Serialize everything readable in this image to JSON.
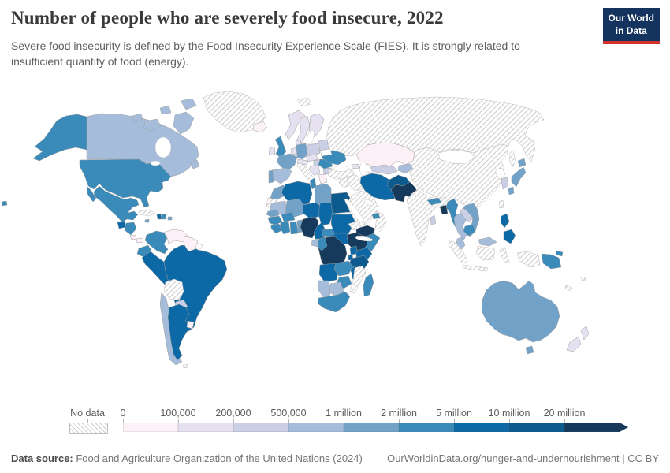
{
  "header": {
    "title": "Number of people who are severely food insecure, 2022",
    "subtitle": "Severe food insecurity is defined by the Food Insecurity Experience Scale (FIES). It is strongly related to insufficient quantity of food (energy).",
    "logo": {
      "line1": "Our World",
      "line2": "in Data",
      "bg_color": "#15335f",
      "accent_color": "#d0342c"
    }
  },
  "chart_data": {
    "type": "heatmap",
    "subtype": "choropleth-world-map",
    "title": "Number of people who are severely food insecure",
    "year": "2022",
    "unit": "people severely food insecure",
    "legend": {
      "no_data_label": "No data",
      "tick_labels": [
        "0",
        "100,000",
        "200,000",
        "500,000",
        "1 million",
        "2 million",
        "5 million",
        "10 million",
        "20 million"
      ],
      "bin_keys": [
        "0-100k",
        "100k-200k",
        "200k-500k",
        "500k-1M",
        "1M-2M",
        "2M-5M",
        "5M-10M",
        "10M-20M",
        "20M+"
      ],
      "bin_colors": [
        "#fdf1f7",
        "#e5e1f0",
        "#cbcfe5",
        "#a5bddb",
        "#73a2c9",
        "#3b8bba",
        "#0c69a6",
        "#0d5a8f",
        "#163a5b"
      ],
      "no_data_pattern": "diagonal-hatch",
      "position": "bottom"
    },
    "countries": {
      "Canada": "500k-1M",
      "United States": "2M-5M",
      "Hawaii": "2M-5M",
      "Alaska": "2M-5M",
      "Greenland": "no-data",
      "Mexico": "2M-5M",
      "Guatemala": "5M-10M",
      "Honduras & Nicaragua": "2M-5M",
      "Costa Rica": "0-100k",
      "Panama": "0-100k",
      "Cuba": "no-data",
      "Haiti": "5M-10M",
      "Dominican Republic": "2M-5M",
      "Jamaica": "1M-2M",
      "Puerto Rico": "1M-2M",
      "Colombia": "2M-5M",
      "Venezuela": "0-100k",
      "Guyana & Suriname": "0-100k",
      "French Guiana": "none",
      "Ecuador": "2M-5M",
      "Peru": "5M-10M",
      "Brazil": "5M-10M",
      "Bolivia": "no-data",
      "Paraguay": "200k-500k",
      "Chile": "500k-1M",
      "Argentina": "5M-10M",
      "Uruguay": "0-100k",
      "Falkland Islands": "no-data",
      "Iceland": "0-100k",
      "Svalbard": "no-data",
      "Norway": "100k-200k",
      "Sweden": "100k-200k",
      "Finland": "100k-200k",
      "Denmark": "100k-200k",
      "United Kingdom": "2M-5M",
      "Ireland": "100k-200k",
      "France": "1M-2M",
      "Belgium & Netherlands": "100k-200k",
      "Germany": "1M-2M",
      "Poland": "200k-500k",
      "Czechia & Slovakia": "100k-200k",
      "Austria & Switzerland": "100k-200k",
      "Hungary": "200k-500k",
      "Balkans": "100k-200k",
      "Romania": "2M-5M",
      "Bulgaria": "200k-500k",
      "Greece": "0-100k",
      "Italy": "no-data",
      "Ukraine": "2M-5M",
      "Belarus": "none",
      "Baltic states": "200k-500k",
      "Spain": "500k-1M",
      "Portugal": "1M-2M",
      "Georgia": "100k-200k",
      "Azerbaijan": "200k-500k",
      "Russia": "no-data",
      "Sakhalin": "no-data",
      "Kazakhstan": "0-100k",
      "Uzbekistan": "200k-500k",
      "Turkmenistan": "no-data",
      "Kyrgyzstan & Tajikistan": "500k-1M",
      "Turkey": "no-data",
      "Syria & Jordan": "no-data",
      "Iraq": "no-data",
      "Saudi Arabia": "no-data",
      "Yemen": "20M+",
      "Oman": "no-data",
      "United Arab Emirates": "2M-5M",
      "Iran": "5M-10M",
      "Afghanistan": "10M-20M",
      "Pakistan": "20M+",
      "India": "no-data",
      "Nepal": "2M-5M",
      "Bangladesh": "20M+",
      "Sri Lanka": "200k-500k",
      "Myanmar": "2M-5M",
      "Thailand": "500k-1M",
      "Laos": "200k-500k",
      "Vietnam": "1M-2M",
      "Cambodia": "2M-5M",
      "Malaysia": "500k-1M",
      "Indonesia": "no-data",
      "Philippines": "5M-10M",
      "China": "no-data",
      "Mongolia": "none",
      "Taiwan": "no-data",
      "Japan": "1M-2M",
      "South Korea": "200k-500k",
      "North Korea": "none",
      "Morocco": "1M-2M",
      "Western Sahara": "no-data",
      "Algeria": "5M-10M",
      "Tunisia": "2M-5M",
      "Libya": "1M-2M",
      "Egypt": "10M-20M",
      "Mauritania": "500k-1M",
      "Mali": "1M-2M",
      "Senegal": "1M-2M",
      "Guinea": "2M-5M",
      "Sierra Leone & Liberia": "2M-5M",
      "Ivory Coast": "2M-5M",
      "Ghana": "2M-5M",
      "Burkina Faso": "2M-5M",
      "Benin & Togo": "1M-2M",
      "Niger": "5M-10M",
      "Chad": "5M-10M",
      "Nigeria": "20M+",
      "Cameroon": "5M-10M",
      "Central African Republic": "2M-5M",
      "Sudan": "5M-10M",
      "Eritrea": "no-data",
      "Ethiopia": "20M+",
      "Somalia": "2M-5M",
      "South Sudan": "5M-10M",
      "Uganda": "5M-10M",
      "Kenya": "5M-10M",
      "Rwanda & Burundi": "5M-10M",
      "Tanzania": "10M-20M",
      "Gabon": "500k-1M",
      "Congo": "2M-5M",
      "DR Congo": "20M+",
      "Angola": "5M-10M",
      "Zambia": "2M-5M",
      "Malawi": "5M-10M",
      "Mozambique": "no-data",
      "Zimbabwe": "2M-5M",
      "Botswana": "500k-1M",
      "Namibia": "500k-1M",
      "South Africa": "2M-5M",
      "Madagascar": "2M-5M",
      "Australia": "1M-2M",
      "Papua New Guinea": "2M-5M",
      "New Zealand": "100k-200k",
      "New Caledonia": "no-data",
      "Fiji": "no-data"
    }
  },
  "footer": {
    "source_label": "Data source:",
    "source_text": " Food and Agriculture Organization of the United Nations (2024)",
    "link_text": "OurWorldinData.org/hunger-and-undernourishment | CC BY"
  }
}
